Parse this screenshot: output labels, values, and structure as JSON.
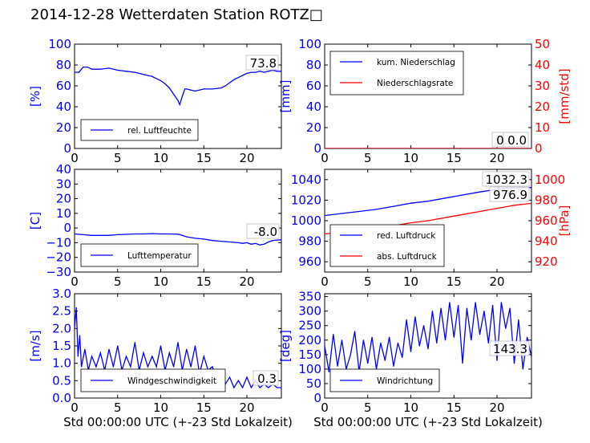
{
  "title": "2014-12-28 Wetterdaten Station ROTZ□",
  "colors": {
    "primary": "#0000ff",
    "secondary": "#ff0000",
    "dim": "#8080ff"
  },
  "chart_data": [
    {
      "type": "line",
      "xlim": [
        0,
        24
      ],
      "xticks": [
        "0",
        "5",
        "10",
        "15",
        "20"
      ],
      "ylabel": "[%]",
      "ylim": [
        0,
        100
      ],
      "yticks": [
        "0",
        "20",
        "40",
        "60",
        "80",
        "100"
      ],
      "legend": {
        "position": "lower-left",
        "entries": [
          "rel. Luftfeuchte"
        ]
      },
      "annotations": [
        "73.8"
      ],
      "series": [
        {
          "name": "rel. Luftfeuchte",
          "color": "#0000ff",
          "x": [
            0,
            0.5,
            1,
            1.5,
            2,
            3,
            4,
            5,
            6,
            7,
            8,
            8.5,
            9,
            10,
            10.5,
            11,
            11.5,
            12,
            12.2,
            12.5,
            12.8,
            13,
            13.5,
            14,
            15,
            16,
            17,
            17.5,
            18,
            18.5,
            19,
            19.5,
            20,
            20.5,
            21,
            21.5,
            22,
            22.5,
            23,
            23.5,
            24
          ],
          "y": [
            73,
            73,
            78,
            78,
            76,
            76,
            77,
            75,
            74,
            73,
            71,
            70,
            69,
            65,
            62,
            58,
            52,
            46,
            42,
            50,
            57,
            57,
            56,
            55,
            57,
            57,
            58,
            60,
            63,
            66,
            68,
            70,
            72,
            73,
            73,
            74,
            73,
            74,
            75,
            74,
            74
          ]
        }
      ]
    },
    {
      "type": "line",
      "xlim": [
        0,
        24
      ],
      "xticks": [
        "0",
        "5",
        "10",
        "15",
        "20"
      ],
      "ylabel": "[mm]",
      "ylim": [
        0,
        100
      ],
      "yticks": [
        "0",
        "20",
        "40",
        "60",
        "80",
        "100"
      ],
      "y2label": "[mm/std]",
      "y2lim": [
        0,
        50
      ],
      "y2ticks": [
        "0",
        "10",
        "20",
        "30",
        "40",
        "50"
      ],
      "legend": {
        "position": "upper-left",
        "entries": [
          "kum. Niederschlag",
          "Niederschlagsrate"
        ]
      },
      "annotations": [
        "0.0",
        "0.0"
      ],
      "series": [
        {
          "name": "kum. Niederschlag",
          "color": "#0000ff",
          "axis": "left",
          "x": [
            0,
            24
          ],
          "y": [
            0,
            0
          ]
        },
        {
          "name": "Niederschlagsrate",
          "color": "#ff0000",
          "axis": "right",
          "x": [
            0,
            24
          ],
          "y": [
            0,
            0
          ]
        }
      ]
    },
    {
      "type": "line",
      "xlim": [
        0,
        24
      ],
      "xticks": [
        "0",
        "5",
        "10",
        "15",
        "20"
      ],
      "ylabel": "[C]",
      "ylim": [
        -30,
        40
      ],
      "yticks": [
        "−30",
        "−20",
        "−10",
        "0",
        "10",
        "20",
        "30",
        "40"
      ],
      "legend": {
        "position": "lower-left",
        "entries": [
          "Lufttemperatur"
        ]
      },
      "annotations": [
        "-8.0"
      ],
      "series": [
        {
          "name": "Lufttemperatur",
          "color": "#0000ff",
          "x": [
            0,
            1,
            2,
            3,
            4,
            5,
            6,
            7,
            8,
            9,
            10,
            11,
            12,
            12.5,
            13,
            14,
            15,
            16,
            17,
            18,
            19,
            19.5,
            20,
            20.5,
            21,
            21.5,
            22,
            22.5,
            23,
            23.5,
            24
          ],
          "y": [
            -4,
            -4.5,
            -5,
            -5,
            -5,
            -4.5,
            -4.3,
            -4,
            -4,
            -3.8,
            -4,
            -4,
            -4.2,
            -5,
            -6,
            -7,
            -7.5,
            -8.5,
            -9,
            -9.5,
            -10,
            -10.5,
            -10,
            -11,
            -10.5,
            -11.5,
            -11,
            -9.5,
            -8.5,
            -8.2,
            -8
          ]
        }
      ]
    },
    {
      "type": "line",
      "xlim": [
        0,
        24
      ],
      "xticks": [
        "0",
        "5",
        "10",
        "15",
        "20"
      ],
      "ylim": [
        950,
        1050
      ],
      "yticks": [
        "960",
        "980",
        "1000",
        "1020",
        "1040"
      ],
      "y2label": "[hPa]",
      "y2lim": [
        910,
        1010
      ],
      "y2ticks": [
        "920",
        "940",
        "960",
        "980",
        "1000"
      ],
      "legend": {
        "position": "lower-left",
        "entries": [
          "red. Luftdruck",
          "abs. Luftdruck"
        ]
      },
      "annotations": [
        "1032.3",
        "976.9"
      ],
      "series": [
        {
          "name": "red. Luftdruck",
          "color": "#0000ff",
          "axis": "left",
          "x": [
            0,
            2,
            4,
            6,
            8,
            10,
            12,
            14,
            16,
            18,
            20,
            22,
            24
          ],
          "y": [
            1005,
            1007,
            1009,
            1011,
            1014,
            1017,
            1019,
            1022,
            1025,
            1028,
            1030.5,
            1032,
            1032.3
          ]
        },
        {
          "name": "abs. Luftdruck",
          "color": "#ff0000",
          "axis": "right",
          "x": [
            0,
            2,
            4,
            6,
            8,
            10,
            12,
            14,
            16,
            18,
            20,
            22,
            24
          ],
          "y": [
            947,
            949,
            950.5,
            952,
            955,
            958,
            960,
            963,
            966,
            969,
            972,
            975,
            976.9
          ]
        }
      ]
    },
    {
      "type": "line",
      "xlim": [
        0,
        24
      ],
      "xticks": [
        "0",
        "5",
        "10",
        "15",
        "20"
      ],
      "xlabel": "Std 00:00:00 UTC (+-23 Std Lokalzeit)",
      "ylabel": "[m/s]",
      "ylim": [
        0,
        3
      ],
      "yticks": [
        "0.0",
        "0.5",
        "1.0",
        "1.5",
        "2.0",
        "2.5",
        "3.0"
      ],
      "legend": {
        "position": "lower-left",
        "entries": [
          "Windgeschwindigkeit"
        ]
      },
      "annotations": [
        "0.3"
      ],
      "series": [
        {
          "name": "Windgeschwindigkeit",
          "color": "#0000ff",
          "x": [
            0,
            0.2,
            0.4,
            0.6,
            0.8,
            1.2,
            1.6,
            2,
            2.5,
            3,
            3.5,
            4,
            4.5,
            5,
            5.5,
            6,
            6.5,
            7,
            7.5,
            8,
            8.5,
            9,
            9.5,
            10,
            10.5,
            11,
            11.5,
            12,
            12.5,
            13,
            13.5,
            14,
            14.5,
            15,
            15.5,
            16,
            16.5,
            17,
            17.5,
            18,
            18.5,
            19,
            19.5,
            20,
            20.5,
            21,
            21.5,
            22,
            22.5,
            23,
            23.5,
            24
          ],
          "y": [
            2.0,
            2.6,
            1.2,
            1.8,
            0.9,
            1.4,
            0.8,
            1.2,
            0.9,
            1.3,
            0.8,
            1.4,
            0.9,
            1.5,
            0.8,
            1.2,
            0.9,
            1.6,
            0.8,
            1.3,
            0.9,
            1.2,
            0.9,
            1.5,
            0.8,
            1.3,
            0.9,
            1.6,
            0.8,
            1.4,
            0.9,
            1.5,
            0.7,
            1.2,
            0.8,
            0.9,
            0.5,
            0.7,
            0.4,
            0.6,
            0.3,
            0.5,
            0.3,
            0.6,
            0.3,
            0.5,
            0.3,
            0.4,
            0.3,
            0.4,
            0.3,
            0.3
          ]
        }
      ]
    },
    {
      "type": "line",
      "xlim": [
        0,
        24
      ],
      "xticks": [
        "0",
        "5",
        "10",
        "15",
        "20"
      ],
      "xlabel": "Std 00:00:00 UTC (+-23 Std Lokalzeit)",
      "ylabel": "[deg]",
      "ylim": [
        0,
        360
      ],
      "yticks": [
        "0",
        "50",
        "100",
        "150",
        "200",
        "250",
        "300",
        "350"
      ],
      "legend": {
        "position": "lower-left",
        "entries": [
          "Windrichtung"
        ]
      },
      "annotations": [
        "143.3"
      ],
      "series": [
        {
          "name": "Windrichtung",
          "color": "#0000ff",
          "x": [
            0,
            0.5,
            1,
            1.5,
            2,
            2.5,
            3,
            3.5,
            4,
            4.5,
            5,
            5.5,
            6,
            6.5,
            7,
            7.5,
            8,
            8.5,
            9,
            9.5,
            10,
            10.5,
            11,
            11.5,
            12,
            12.5,
            13,
            13.5,
            14,
            14.5,
            15,
            15.5,
            16,
            16.5,
            17,
            17.5,
            18,
            18.5,
            19,
            19.5,
            20,
            20.5,
            21,
            21.5,
            22,
            22.5,
            23,
            23.5,
            24
          ],
          "y": [
            180,
            90,
            220,
            110,
            200,
            100,
            150,
            230,
            90,
            200,
            120,
            210,
            100,
            190,
            130,
            210,
            110,
            190,
            140,
            270,
            160,
            280,
            180,
            250,
            170,
            300,
            190,
            310,
            200,
            330,
            210,
            320,
            120,
            310,
            200,
            330,
            220,
            300,
            190,
            320,
            130,
            330,
            240,
            310,
            120,
            270,
            100,
            210,
            143
          ]
        }
      ]
    }
  ]
}
